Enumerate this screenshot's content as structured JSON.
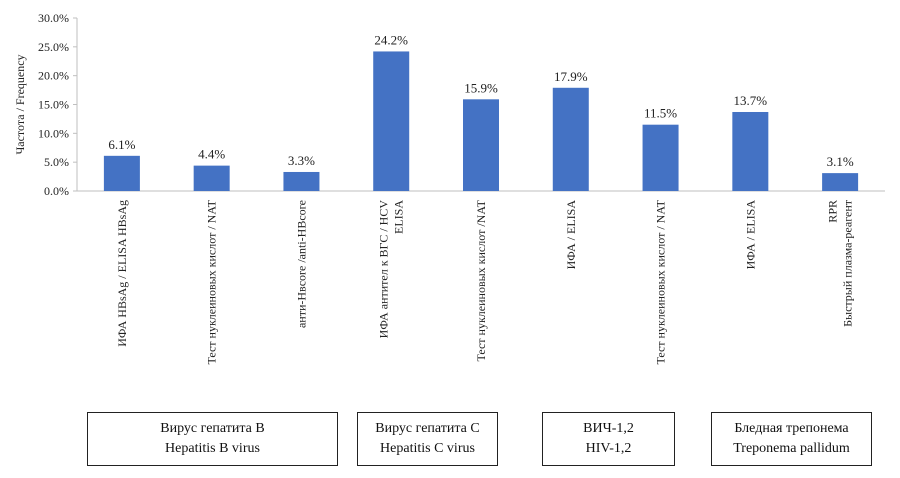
{
  "chart_data": {
    "type": "bar",
    "ylabel": "Частота / Frequency",
    "ylim": [
      0,
      30
    ],
    "yticks": [
      "0.0%",
      "5.0%",
      "10.0%",
      "15.0%",
      "20.0%",
      "25.0%",
      "30.0%"
    ],
    "ytick_values": [
      0,
      5,
      10,
      15,
      20,
      25,
      30
    ],
    "bar_color": "#4472c4",
    "grid": false,
    "categories": [
      [
        "ИФА HBsAg / ELISA HBsAg"
      ],
      [
        "Тест нуклеиновых кислот / NAT"
      ],
      [
        "анти-Hвcore /anti-HBcore"
      ],
      [
        "ИФА антител к ВГС / HCV",
        "ELISA"
      ],
      [
        "Тест нуклеиновых кислот /NAT"
      ],
      [
        "ИФА / ELISA"
      ],
      [
        "Тест нуклеиновых кислот / NAT"
      ],
      [
        "ИФА / ELISA"
      ],
      [
        "RPR",
        "Быстрый плазма-реагент"
      ]
    ],
    "values": [
      6.1,
      4.4,
      3.3,
      24.2,
      15.9,
      17.9,
      11.5,
      13.7,
      3.1
    ],
    "value_labels": [
      "6.1%",
      "4.4%",
      "3.3%",
      "24.2%",
      "15.9%",
      "17.9%",
      "11.5%",
      "13.7%",
      "3.1%"
    ],
    "groups": [
      {
        "lines": [
          "Вирус гепатита B",
          "Hepatitis B virus"
        ]
      },
      {
        "lines": [
          "Вирус гепатита C",
          "Hepatitis C virus"
        ]
      },
      {
        "lines": [
          "ВИЧ-1,2",
          "HIV-1,2"
        ]
      },
      {
        "lines": [
          "Бледная трепонема",
          "Treponema pallidum"
        ]
      }
    ]
  }
}
